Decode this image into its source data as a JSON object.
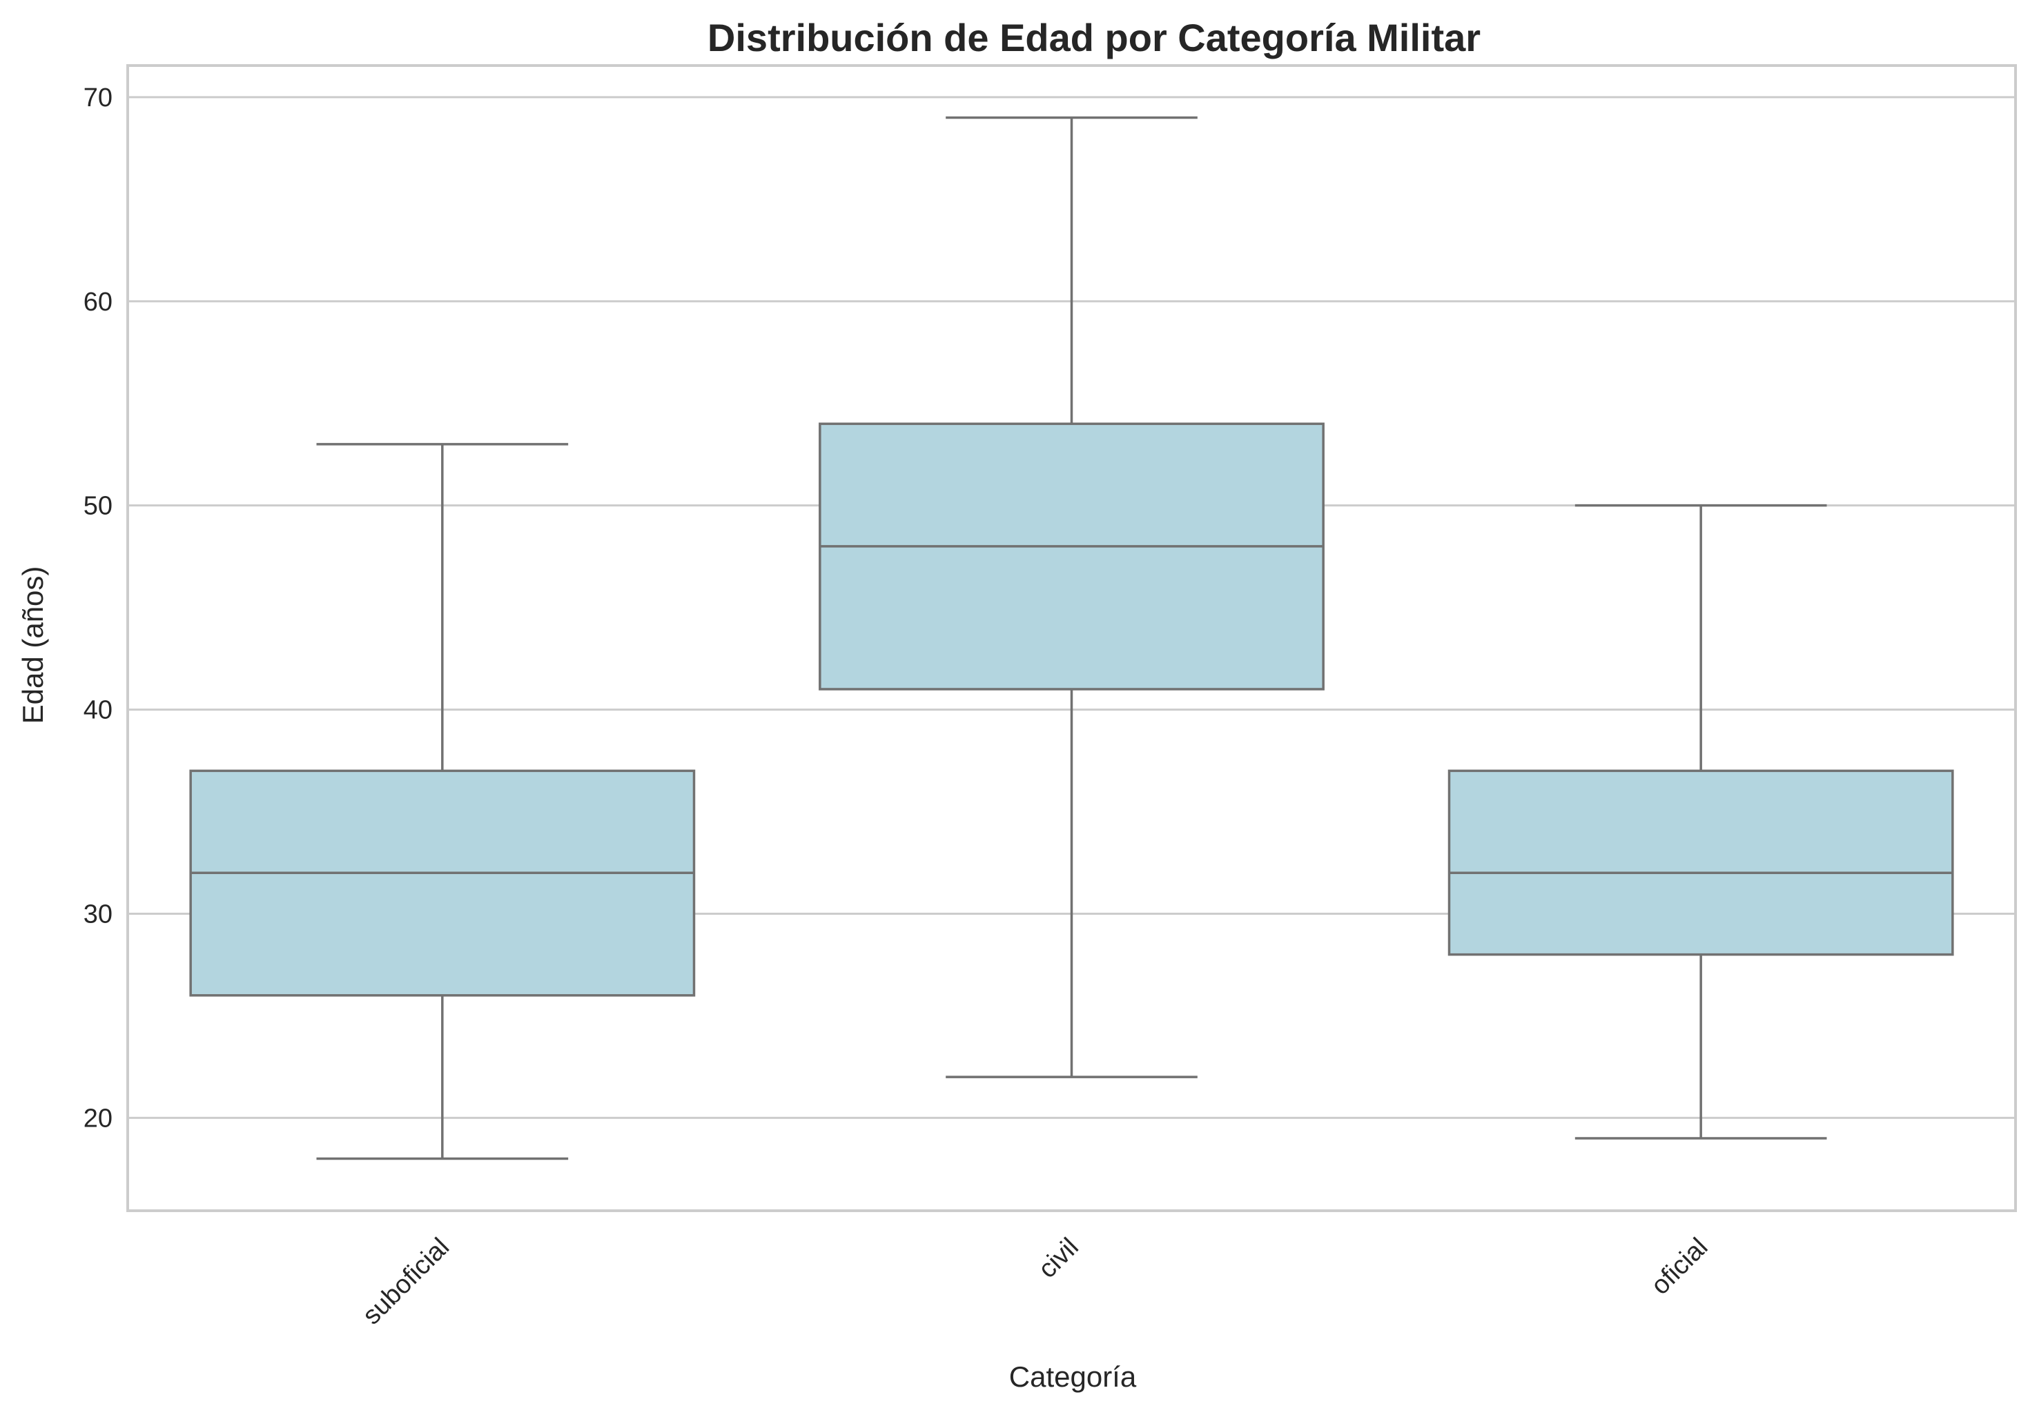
{
  "chart_data": {
    "type": "boxplot",
    "title": "Distribución de Edad por Categoría Militar",
    "xlabel": "Categoría",
    "ylabel": "Edad (años)",
    "ylim": [
      15.45,
      71.55
    ],
    "yticks": [
      20,
      30,
      40,
      50,
      60,
      70
    ],
    "grid": "horizontal",
    "legend": "none",
    "colors": {
      "box_fill": "#b3d5df",
      "line": "#717171",
      "grid": "#cccccc",
      "spine": "#cccccc"
    },
    "categories": [
      "suboficial",
      "civil",
      "oficial"
    ],
    "boxes": [
      {
        "category": "suboficial",
        "whisker_low": 18,
        "q1": 26,
        "median": 32,
        "q3": 37,
        "whisker_high": 53
      },
      {
        "category": "civil",
        "whisker_low": 22,
        "q1": 41,
        "median": 48,
        "q3": 54,
        "whisker_high": 69
      },
      {
        "category": "oficial",
        "whisker_low": 19,
        "q1": 28,
        "median": 32,
        "q3": 37,
        "whisker_high": 50
      }
    ]
  }
}
